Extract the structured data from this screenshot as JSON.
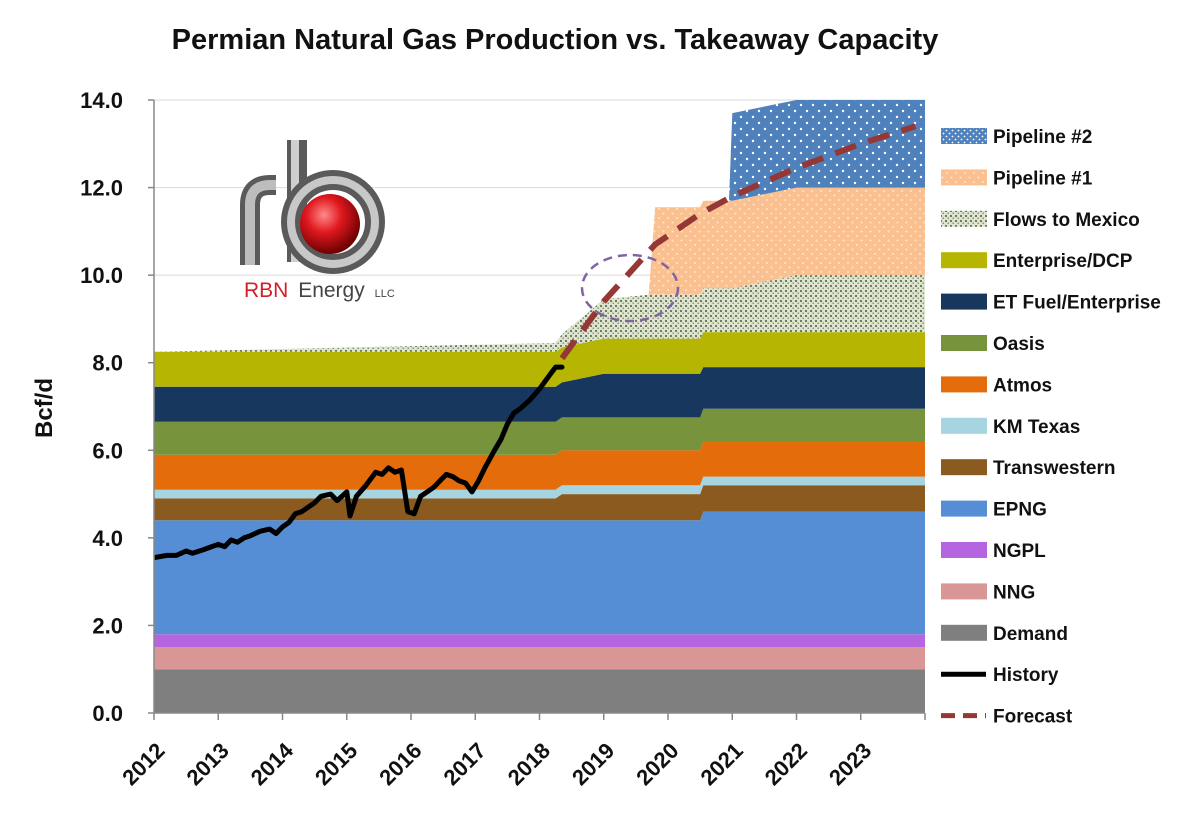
{
  "chart_data": {
    "type": "area",
    "title": "Permian Natural Gas Production vs. Takeaway Capacity",
    "ylabel": "Bcf/d",
    "xlabel": "",
    "xlim": [
      2012,
      2024
    ],
    "ylim": [
      0,
      14
    ],
    "yticks": [
      "0.0",
      "2.0",
      "4.0",
      "6.0",
      "8.0",
      "10.0",
      "12.0",
      "14.0"
    ],
    "xticks": [
      "2012",
      "2013",
      "2014",
      "2015",
      "2016",
      "2017",
      "2018",
      "2019",
      "2020",
      "2021",
      "2022",
      "2023"
    ],
    "stack_x": [
      2012.0,
      2018.25,
      2018.35,
      2019.0,
      2019.7,
      2019.8,
      2020.5,
      2020.55,
      2020.95,
      2021.0,
      2022.0,
      2024.0
    ],
    "series": [
      {
        "name": "Demand",
        "color": "#7f7f7f",
        "values": [
          1.0,
          1.0,
          1.0,
          1.0,
          1.0,
          1.0,
          1.0,
          1.0,
          1.0,
          1.0,
          1.0,
          1.0
        ]
      },
      {
        "name": "NNG",
        "color": "#d99694",
        "values": [
          0.5,
          0.5,
          0.5,
          0.5,
          0.5,
          0.5,
          0.5,
          0.5,
          0.5,
          0.5,
          0.5,
          0.5
        ]
      },
      {
        "name": "NGPL",
        "color": "#b565e0",
        "values": [
          0.3,
          0.3,
          0.3,
          0.3,
          0.3,
          0.3,
          0.3,
          0.3,
          0.3,
          0.3,
          0.3,
          0.3
        ]
      },
      {
        "name": "EPNG",
        "color": "#558ed5",
        "values": [
          2.6,
          2.6,
          2.6,
          2.6,
          2.6,
          2.6,
          2.6,
          2.8,
          2.8,
          2.8,
          2.8,
          2.8
        ]
      },
      {
        "name": "Transwestern",
        "color": "#8b5a1e",
        "values": [
          0.5,
          0.5,
          0.6,
          0.6,
          0.6,
          0.6,
          0.6,
          0.6,
          0.6,
          0.6,
          0.6,
          0.6
        ]
      },
      {
        "name": "KM Texas",
        "color": "#a6d4e0",
        "values": [
          0.2,
          0.2,
          0.2,
          0.2,
          0.2,
          0.2,
          0.2,
          0.2,
          0.2,
          0.2,
          0.2,
          0.2
        ]
      },
      {
        "name": "Atmos",
        "color": "#e46c0a",
        "values": [
          0.8,
          0.8,
          0.8,
          0.8,
          0.8,
          0.8,
          0.8,
          0.8,
          0.8,
          0.8,
          0.8,
          0.8
        ]
      },
      {
        "name": "Oasis",
        "color": "#77933c",
        "values": [
          0.75,
          0.75,
          0.75,
          0.75,
          0.75,
          0.75,
          0.75,
          0.75,
          0.75,
          0.75,
          0.75,
          0.75
        ]
      },
      {
        "name": "ET Fuel/Enterprise",
        "color": "#17375e",
        "values": [
          0.8,
          0.8,
          0.8,
          1.0,
          1.0,
          1.0,
          1.0,
          0.95,
          0.95,
          0.95,
          0.95,
          0.95
        ]
      },
      {
        "name": "Enterprise/DCP",
        "color": "#b5b502",
        "values": [
          0.8,
          0.8,
          0.8,
          0.8,
          0.8,
          0.8,
          0.8,
          0.8,
          0.8,
          0.8,
          0.8,
          0.8
        ]
      },
      {
        "name": "Flows to Mexico",
        "color": "#c9d3b7",
        "values": [
          0.0,
          0.2,
          0.3,
          0.9,
          1.0,
          1.0,
          1.0,
          1.0,
          1.0,
          1.0,
          1.3,
          1.3
        ]
      },
      {
        "name": "Pipeline #1",
        "color": "#fac090",
        "values": [
          0.0,
          0.0,
          0.0,
          0.0,
          0.0,
          2.0,
          2.0,
          2.0,
          2.0,
          2.0,
          2.0,
          2.0
        ]
      },
      {
        "name": "Pipeline #2",
        "color": "#4f81bd",
        "values": [
          0.0,
          0.0,
          0.0,
          0.0,
          0.0,
          0.0,
          0.0,
          0.0,
          0.0,
          2.0,
          2.0,
          2.0
        ]
      }
    ],
    "history": {
      "name": "History",
      "color": "#000000",
      "x": [
        2012.0,
        2012.2,
        2012.35,
        2012.5,
        2012.6,
        2012.75,
        2012.9,
        2013.0,
        2013.1,
        2013.2,
        2013.3,
        2013.4,
        2013.5,
        2013.65,
        2013.8,
        2013.9,
        2014.0,
        2014.1,
        2014.2,
        2014.3,
        2014.4,
        2014.5,
        2014.6,
        2014.75,
        2014.85,
        2015.0,
        2015.05,
        2015.15,
        2015.3,
        2015.45,
        2015.55,
        2015.65,
        2015.75,
        2015.85,
        2015.95,
        2016.05,
        2016.15,
        2016.25,
        2016.35,
        2016.45,
        2016.55,
        2016.65,
        2016.75,
        2016.85,
        2016.95,
        2017.05,
        2017.15,
        2017.3,
        2017.4,
        2017.5,
        2017.6,
        2017.7,
        2017.85,
        2018.0,
        2018.15,
        2018.25,
        2018.35
      ],
      "values": [
        3.55,
        3.6,
        3.6,
        3.7,
        3.65,
        3.72,
        3.8,
        3.85,
        3.8,
        3.95,
        3.9,
        4.0,
        4.05,
        4.15,
        4.2,
        4.1,
        4.25,
        4.35,
        4.55,
        4.6,
        4.7,
        4.8,
        4.95,
        5.0,
        4.85,
        5.05,
        4.5,
        4.95,
        5.2,
        5.5,
        5.45,
        5.6,
        5.5,
        5.55,
        4.6,
        4.55,
        4.95,
        5.05,
        5.15,
        5.3,
        5.45,
        5.4,
        5.3,
        5.25,
        5.05,
        5.3,
        5.6,
        6.0,
        6.25,
        6.6,
        6.85,
        6.95,
        7.15,
        7.4,
        7.7,
        7.9,
        7.9
      ]
    },
    "forecast": {
      "name": "Forecast",
      "color": "#953735",
      "x": [
        2018.35,
        2019.0,
        2019.8,
        2020.5,
        2021.0,
        2022.0,
        2023.0,
        2023.85
      ],
      "values": [
        8.1,
        9.4,
        10.7,
        11.4,
        11.8,
        12.45,
        13.0,
        13.4
      ]
    },
    "annotations": [
      "dashed ellipse around forecast near 2019.5"
    ],
    "legend": [
      "Pipeline #2",
      "Pipeline #1",
      "Flows to Mexico",
      "Enterprise/DCP",
      "ET Fuel/Enterprise",
      "Oasis",
      "Atmos",
      "KM Texas",
      "Transwestern",
      "EPNG",
      "NGPL",
      "NNG",
      "Demand",
      "History",
      "Forecast"
    ],
    "legend_position": "right"
  },
  "logo": {
    "letters": "rb",
    "brand_red": "RBN",
    "brand_rest": "Energy",
    "suffix": "LLC"
  }
}
